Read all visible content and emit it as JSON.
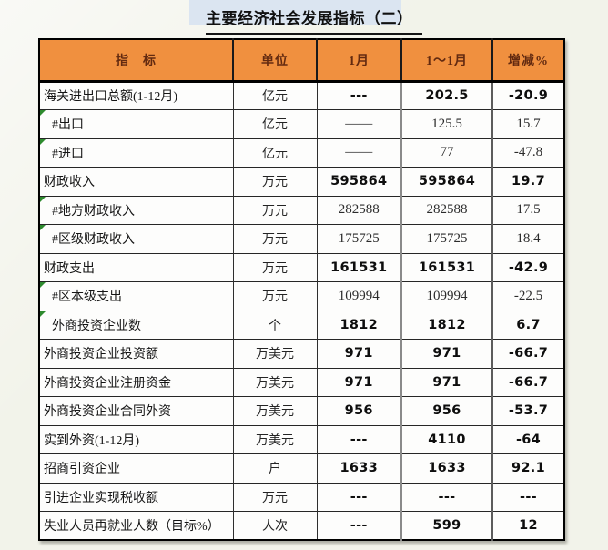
{
  "page": {
    "title": "主要经济社会发展指标（二）"
  },
  "colors": {
    "page_bg": "#f2f3ea",
    "header_bg": "#f0903f",
    "header_text": "#632a10",
    "highlight": "#dbe5f1",
    "marker_green": "#2e8b2e"
  },
  "table": {
    "headers": {
      "indicator": "指　标",
      "unit": "单位",
      "month1": "1月",
      "cumulative": "1～1月",
      "change": "增减%"
    },
    "rows": [
      {
        "label": "海关进出口总额(1-12月)",
        "unit": "亿元",
        "m1": "---",
        "cum": "202.5",
        "change": "-20.9",
        "emphasis": true,
        "indent": false,
        "marker": false
      },
      {
        "label": "#出口",
        "unit": "亿元",
        "m1": "——",
        "cum": "125.5",
        "change": "15.7",
        "emphasis": false,
        "indent": true,
        "marker": true
      },
      {
        "label": "#进口",
        "unit": "亿元",
        "m1": "——",
        "cum": "77",
        "change": "-47.8",
        "emphasis": false,
        "indent": true,
        "marker": true
      },
      {
        "label": "财政收入",
        "unit": "万元",
        "m1": "595864",
        "cum": "595864",
        "change": "19.7",
        "emphasis": true,
        "indent": false,
        "marker": false
      },
      {
        "label": "#地方财政收入",
        "unit": "万元",
        "m1": "282588",
        "cum": "282588",
        "change": "17.5",
        "emphasis": false,
        "indent": true,
        "marker": true
      },
      {
        "label": "#区级财政收入",
        "unit": "万元",
        "m1": "175725",
        "cum": "175725",
        "change": "18.4",
        "emphasis": false,
        "indent": true,
        "marker": true
      },
      {
        "label": "财政支出",
        "unit": "万元",
        "m1": "161531",
        "cum": "161531",
        "change": "-42.9",
        "emphasis": true,
        "indent": false,
        "marker": false
      },
      {
        "label": "#区本级支出",
        "unit": "万元",
        "m1": "109994",
        "cum": "109994",
        "change": "-22.5",
        "emphasis": false,
        "indent": true,
        "marker": true
      },
      {
        "label": "外商投资企业数",
        "unit": "个",
        "m1": "1812",
        "cum": "1812",
        "change": "6.7",
        "emphasis": true,
        "indent": true,
        "marker": true
      },
      {
        "label": "外商投资企业投资额",
        "unit": "万美元",
        "m1": "971",
        "cum": "971",
        "change": "-66.7",
        "emphasis": true,
        "indent": false,
        "marker": false
      },
      {
        "label": "外商投资企业注册资金",
        "unit": "万美元",
        "m1": "971",
        "cum": "971",
        "change": "-66.7",
        "emphasis": true,
        "indent": false,
        "marker": false
      },
      {
        "label": "外商投资企业合同外资",
        "unit": "万美元",
        "m1": "956",
        "cum": "956",
        "change": "-53.7",
        "emphasis": true,
        "indent": false,
        "marker": false
      },
      {
        "label": "实到外资(1-12月)",
        "unit": "万美元",
        "m1": "---",
        "cum": "4110",
        "change": "-64",
        "emphasis": true,
        "indent": false,
        "marker": false
      },
      {
        "label": "招商引资企业",
        "unit": "户",
        "m1": "1633",
        "cum": "1633",
        "change": "92.1",
        "emphasis": true,
        "indent": false,
        "marker": false
      },
      {
        "label": "引进企业实现税收额",
        "unit": "万元",
        "m1": "---",
        "cum": "---",
        "change": "---",
        "emphasis": true,
        "indent": false,
        "marker": false
      },
      {
        "label": "失业人员再就业人数（目标%）",
        "unit": "人次",
        "m1": "---",
        "cum": "599",
        "change": "12",
        "emphasis": true,
        "indent": false,
        "marker": false
      }
    ]
  }
}
